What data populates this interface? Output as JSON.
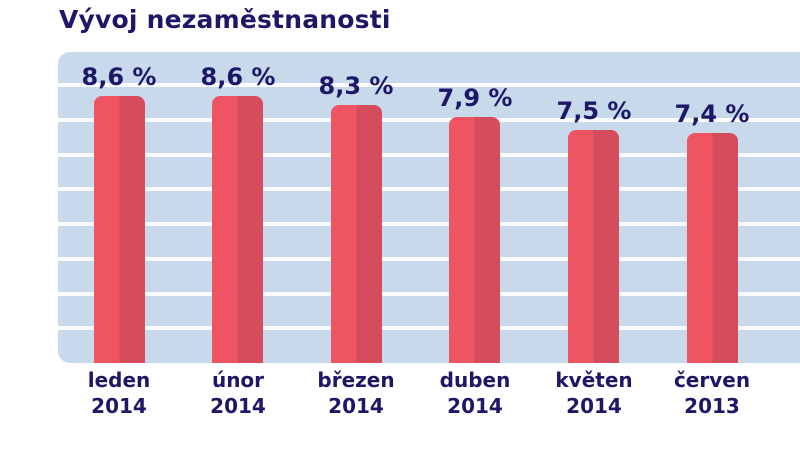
{
  "title": "Vývoj nezaměstnanosti",
  "colors": {
    "title_text": "#1d1768",
    "label_text": "#1d1768",
    "plot_bg": "#c9d9ec",
    "gridline": "#ffffff",
    "bar_light": "#ee5462",
    "bar_dark": "#d54c5c",
    "page_bg": "#ffffff"
  },
  "chart_data": {
    "type": "bar",
    "title": "Vývoj nezaměstnanosti",
    "categories": [
      "leden 2014",
      "únor 2014",
      "březen 2014",
      "duben 2014",
      "květen 2014",
      "červen 2013"
    ],
    "category_lines": [
      [
        "leden",
        "2014"
      ],
      [
        "únor",
        "2014"
      ],
      [
        "březen",
        "2014"
      ],
      [
        "duben",
        "2014"
      ],
      [
        "květen",
        "2014"
      ],
      [
        "červen",
        "2013"
      ]
    ],
    "values": [
      8.6,
      8.6,
      8.3,
      7.9,
      7.5,
      7.4
    ],
    "value_labels": [
      "8,6 %",
      "8,6 %",
      "8,3 %",
      "7,9 %",
      "7,5 %",
      "7,4 %"
    ],
    "unit": "%",
    "ylim": [
      0,
      10
    ],
    "grid": true,
    "gridline_count": 8,
    "legend": false,
    "xlabel": "",
    "ylabel": ""
  }
}
